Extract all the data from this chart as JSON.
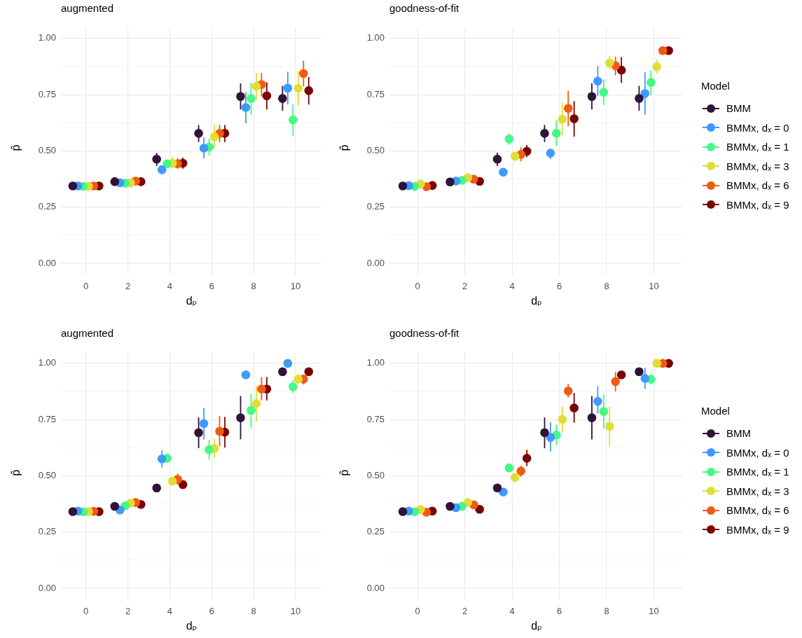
{
  "chart_data": [
    {
      "type": "scatter",
      "title": "augmented",
      "xlabel": "dₚ",
      "ylabel": "p̂",
      "xlim": [
        -1.19,
        11.19
      ],
      "xticks": [
        0,
        2,
        4,
        6,
        8,
        10
      ],
      "ylim": [
        -0.05,
        1.05
      ],
      "yticks": [
        {
          "value": 0,
          "label": "0.00"
        },
        {
          "value": 0.125,
          "label": null
        },
        {
          "value": 0.25,
          "label": "0.25"
        },
        {
          "value": 0.375,
          "label": null
        },
        {
          "value": 0.5,
          "label": "0.50"
        },
        {
          "value": 0.625,
          "label": null
        },
        {
          "value": 0.75,
          "label": "0.75"
        },
        {
          "value": 0.875,
          "label": null
        },
        {
          "value": 1,
          "label": "1.00"
        }
      ],
      "grid": true,
      "marker": "circle",
      "series": [
        {
          "color": "#30123b",
          "x": [
            -0.625,
            1.375,
            3.375,
            5.375,
            7.375,
            9.375
          ],
          "values": [
            0.344,
            0.363,
            0.463,
            0.578,
            0.742,
            0.733
          ],
          "errors": [
            null,
            null,
            [
              0.433,
              0.491
            ],
            [
              0.539,
              0.615
            ],
            [
              0.684,
              0.8
            ],
            [
              0.678,
              0.789
            ]
          ]
        },
        {
          "color": "#3e9bfe",
          "x": [
            -0.375,
            1.625,
            3.625,
            5.625,
            7.625,
            9.625
          ],
          "values": [
            0.344,
            0.358,
            0.416,
            0.512,
            0.693,
            0.779
          ],
          "errors": [
            null,
            null,
            null,
            [
              0.466,
              0.56
            ],
            [
              0.623,
              0.761
            ],
            [
              0.706,
              0.852
            ]
          ]
        },
        {
          "color": "#46f884",
          "x": [
            -0.125,
            1.875,
            3.875,
            5.875,
            7.875,
            9.875
          ],
          "values": [
            0.342,
            0.356,
            0.443,
            0.517,
            0.733,
            0.638
          ],
          "errors": [
            null,
            null,
            null,
            [
              0.479,
              0.555
            ],
            [
              0.661,
              0.804
            ],
            [
              0.565,
              0.708
            ]
          ]
        },
        {
          "color": "#e1dd37",
          "x": [
            0.125,
            2.125,
            4.125,
            6.125,
            8.125,
            10.125
          ],
          "values": [
            0.342,
            0.358,
            0.445,
            0.563,
            0.787,
            0.778
          ],
          "errors": [
            null,
            null,
            [
              0.421,
              0.474
            ],
            [
              0.511,
              0.618
            ],
            [
              0.727,
              0.846
            ],
            [
              0.7,
              0.855
            ]
          ]
        },
        {
          "color": "#f05b12",
          "x": [
            0.375,
            2.375,
            4.375,
            6.375,
            8.375,
            10.375
          ],
          "values": [
            0.344,
            0.366,
            0.443,
            0.578,
            0.795,
            0.844
          ],
          "errors": [
            null,
            null,
            [
              0.421,
              0.468
            ],
            [
              0.539,
              0.615
            ],
            [
              0.741,
              0.846
            ],
            [
              0.787,
              0.901
            ]
          ]
        },
        {
          "color": "#7a0403",
          "x": [
            0.625,
            2.625,
            4.625,
            6.625,
            8.625,
            10.625
          ],
          "values": [
            0.344,
            0.363,
            0.445,
            0.578,
            0.745,
            0.768
          ],
          "errors": [
            null,
            null,
            [
              0.421,
              0.47
            ],
            [
              0.539,
              0.615
            ],
            [
              0.684,
              0.805
            ],
            [
              0.706,
              0.828
            ]
          ]
        }
      ]
    },
    {
      "type": "scatter",
      "title": "goodness-of-fit",
      "xlabel": "dₚ",
      "ylabel": "p̂",
      "xlim": [
        -1.19,
        11.19
      ],
      "xticks": [
        0,
        2,
        4,
        6,
        8,
        10
      ],
      "ylim": [
        -0.05,
        1.05
      ],
      "yticks": [
        {
          "value": 0,
          "label": "0.00"
        },
        {
          "value": 0.125,
          "label": null
        },
        {
          "value": 0.25,
          "label": "0.25"
        },
        {
          "value": 0.375,
          "label": null
        },
        {
          "value": 0.5,
          "label": "0.50"
        },
        {
          "value": 0.625,
          "label": null
        },
        {
          "value": 0.75,
          "label": "0.75"
        },
        {
          "value": 0.875,
          "label": null
        },
        {
          "value": 1,
          "label": "1.00"
        }
      ],
      "grid": true,
      "marker": "circle",
      "legend": "right",
      "legend_title": "Model",
      "series": [
        {
          "name": "BMM",
          "color": "#30123b",
          "x": [
            -0.625,
            1.375,
            3.375,
            5.375,
            7.375,
            9.375
          ],
          "values": [
            0.344,
            0.362,
            0.463,
            0.578,
            0.742,
            0.733
          ],
          "errors": [
            null,
            null,
            [
              0.433,
              0.492
            ],
            [
              0.539,
              0.615
            ],
            [
              0.684,
              0.8
            ],
            [
              0.678,
              0.789
            ]
          ]
        },
        {
          "name": "BMMx, dₓ = 0",
          "color": "#3e9bfe",
          "x": [
            -0.375,
            1.625,
            3.625,
            5.625,
            7.625,
            9.625
          ],
          "values": [
            0.345,
            0.366,
            0.405,
            0.49,
            0.81,
            0.755
          ],
          "errors": [
            null,
            null,
            null,
            [
              0.464,
              0.506
            ],
            [
              0.744,
              0.877
            ],
            [
              0.66,
              0.85
            ]
          ]
        },
        {
          "name": "BMMx, dₓ = 1",
          "color": "#46f884",
          "x": [
            -0.125,
            1.875,
            3.875,
            5.875,
            7.875,
            9.875
          ],
          "values": [
            0.342,
            0.369,
            0.553,
            0.578,
            0.76,
            0.804
          ],
          "errors": [
            null,
            null,
            [
              0.527,
              0.577
            ],
            [
              0.522,
              0.635
            ],
            [
              0.704,
              0.818
            ],
            [
              0.747,
              0.858
            ]
          ]
        },
        {
          "name": "BMMx, dₓ = 3",
          "color": "#e1dd37",
          "x": [
            0.125,
            2.125,
            4.125,
            6.125,
            8.125,
            10.125
          ],
          "values": [
            0.352,
            0.381,
            0.476,
            0.641,
            0.891,
            0.874
          ],
          "errors": [
            null,
            null,
            [
              0.455,
              0.489
            ],
            [
              0.567,
              0.714
            ],
            [
              0.863,
              0.924
            ],
            [
              0.843,
              0.905
            ]
          ]
        },
        {
          "name": "BMMx, dₓ = 6",
          "color": "#f05b12",
          "x": [
            0.375,
            2.375,
            4.375,
            6.375,
            8.375,
            10.375
          ],
          "values": [
            0.341,
            0.374,
            0.484,
            0.689,
            0.879,
            0.946
          ],
          "errors": [
            null,
            null,
            [
              0.453,
              0.516
            ],
            [
              0.609,
              0.767
            ],
            [
              0.836,
              0.919
            ],
            null
          ]
        },
        {
          "name": "BMMx, dₓ = 9",
          "color": "#7a0403",
          "x": [
            0.625,
            2.625,
            4.625,
            6.625,
            8.625,
            10.625
          ],
          "values": [
            0.346,
            0.364,
            0.498,
            0.643,
            0.859,
            0.946
          ],
          "errors": [
            null,
            null,
            [
              0.472,
              0.526
            ],
            [
              0.563,
              0.721
            ],
            [
              0.802,
              0.917
            ],
            null
          ]
        }
      ]
    },
    {
      "type": "scatter",
      "title": "augmented",
      "xlabel": "dₚ",
      "ylabel": "p̂",
      "xlim": [
        -1.19,
        11.19
      ],
      "xticks": [
        0,
        2,
        4,
        6,
        8,
        10
      ],
      "ylim": [
        -0.05,
        1.05
      ],
      "yticks": [
        {
          "value": 0,
          "label": "0.00"
        },
        {
          "value": 0.125,
          "label": null
        },
        {
          "value": 0.25,
          "label": "0.25"
        },
        {
          "value": 0.375,
          "label": null
        },
        {
          "value": 0.5,
          "label": "0.50"
        },
        {
          "value": 0.625,
          "label": null
        },
        {
          "value": 0.75,
          "label": "0.75"
        },
        {
          "value": 0.875,
          "label": null
        },
        {
          "value": 1,
          "label": "1.00"
        }
      ],
      "grid": true,
      "marker": "circle",
      "series": [
        {
          "color": "#30123b",
          "x": [
            -0.625,
            1.375,
            3.375,
            5.375,
            7.375,
            9.375
          ],
          "values": [
            0.341,
            0.364,
            0.446,
            0.692,
            0.758,
            0.963
          ],
          "errors": [
            null,
            null,
            null,
            [
              0.623,
              0.76
            ],
            [
              0.662,
              0.855
            ],
            null
          ]
        },
        {
          "color": "#3e9bfe",
          "x": [
            -0.375,
            1.625,
            3.625,
            5.625,
            7.625,
            9.625
          ],
          "values": [
            0.343,
            0.348,
            0.575,
            0.732,
            0.949,
            1.0
          ],
          "errors": [
            null,
            null,
            [
              0.537,
              0.613
            ],
            [
              0.662,
              0.801
            ],
            null,
            null
          ]
        },
        {
          "color": "#46f884",
          "x": [
            -0.125,
            1.875,
            3.875,
            5.875,
            7.875,
            9.875
          ],
          "values": [
            0.34,
            0.367,
            0.578,
            0.616,
            0.791,
            0.896
          ],
          "errors": [
            null,
            null,
            [
              0.559,
              0.6
            ],
            [
              0.572,
              0.66
            ],
            [
              0.714,
              0.864
            ],
            [
              0.868,
              0.925
            ]
          ]
        },
        {
          "color": "#e1dd37",
          "x": [
            0.125,
            2.125,
            4.125,
            6.125,
            8.125,
            10.125
          ],
          "values": [
            0.341,
            0.379,
            0.476,
            0.622,
            0.821,
            0.93
          ],
          "errors": [
            null,
            null,
            null,
            [
              0.578,
              0.665
            ],
            [
              0.741,
              0.9
            ],
            [
              0.908,
              0.953
            ]
          ]
        },
        {
          "color": "#f05b12",
          "x": [
            0.375,
            2.375,
            4.375,
            6.375,
            8.375,
            10.375
          ],
          "values": [
            0.342,
            0.381,
            0.484,
            0.698,
            0.886,
            0.93
          ],
          "errors": [
            null,
            null,
            [
              0.461,
              0.51
            ],
            [
              0.632,
              0.766
            ],
            [
              0.835,
              0.939
            ],
            [
              0.906,
              0.951
            ]
          ]
        },
        {
          "color": "#7a0403",
          "x": [
            0.625,
            2.625,
            4.625,
            6.625,
            8.625,
            10.625
          ],
          "values": [
            0.341,
            0.373,
            0.461,
            0.694,
            0.886,
            0.963
          ],
          "errors": [
            null,
            null,
            null,
            [
              0.626,
              0.762
            ],
            [
              0.835,
              0.939
            ],
            null
          ]
        }
      ]
    },
    {
      "type": "scatter",
      "title": "goodness-of-fit",
      "xlabel": "dₚ",
      "ylabel": "p̂",
      "xlim": [
        -1.19,
        11.19
      ],
      "xticks": [
        0,
        2,
        4,
        6,
        8,
        10
      ],
      "ylim": [
        -0.05,
        1.05
      ],
      "yticks": [
        {
          "value": 0,
          "label": "0.00"
        },
        {
          "value": 0.125,
          "label": null
        },
        {
          "value": 0.25,
          "label": "0.25"
        },
        {
          "value": 0.375,
          "label": null
        },
        {
          "value": 0.5,
          "label": "0.50"
        },
        {
          "value": 0.625,
          "label": null
        },
        {
          "value": 0.75,
          "label": "0.75"
        },
        {
          "value": 0.875,
          "label": null
        },
        {
          "value": 1,
          "label": "1.00"
        }
      ],
      "grid": true,
      "marker": "circle",
      "legend": "right",
      "legend_title": "Model",
      "series": [
        {
          "name": "BMM",
          "color": "#30123b",
          "x": [
            -0.625,
            1.375,
            3.375,
            5.375,
            7.375,
            9.375
          ],
          "values": [
            0.341,
            0.364,
            0.446,
            0.692,
            0.758,
            0.963
          ],
          "errors": [
            null,
            null,
            null,
            [
              0.623,
              0.76
            ],
            [
              0.662,
              0.855
            ],
            null
          ]
        },
        {
          "name": "BMMx, dₓ = 0",
          "color": "#3e9bfe",
          "x": [
            -0.375,
            1.625,
            3.625,
            5.625,
            7.625,
            9.625
          ],
          "values": [
            0.343,
            0.358,
            0.428,
            0.671,
            0.831,
            0.933
          ],
          "errors": [
            null,
            null,
            null,
            [
              0.608,
              0.738
            ],
            [
              0.777,
              0.899
            ],
            [
              0.887,
              0.98
            ]
          ]
        },
        {
          "name": "BMMx, dₓ = 1",
          "color": "#46f884",
          "x": [
            -0.125,
            1.875,
            3.875,
            5.875,
            7.875,
            9.875
          ],
          "values": [
            0.34,
            0.364,
            0.535,
            0.681,
            0.786,
            0.929
          ],
          "errors": [
            null,
            null,
            null,
            [
              0.636,
              0.728
            ],
            [
              0.709,
              0.862
            ],
            [
              0.906,
              0.951
            ]
          ]
        },
        {
          "name": "BMMx, dₓ = 3",
          "color": "#e1dd37",
          "x": [
            0.125,
            2.125,
            4.125,
            6.125,
            8.125,
            10.125
          ],
          "values": [
            0.35,
            0.381,
            0.493,
            0.751,
            0.72,
            1.0
          ],
          "errors": [
            null,
            null,
            [
              0.468,
              0.514
            ],
            [
              0.692,
              0.809
            ],
            [
              0.631,
              0.809
            ],
            null
          ]
        },
        {
          "name": "BMMx, dₓ = 6",
          "color": "#f05b12",
          "x": [
            0.375,
            2.375,
            4.375,
            6.375,
            8.375,
            10.375
          ],
          "values": [
            0.338,
            0.371,
            0.521,
            0.877,
            0.919,
            1.0
          ],
          "errors": [
            null,
            null,
            [
              0.496,
              0.545
            ],
            [
              0.848,
              0.909
            ],
            [
              0.875,
              0.962
            ],
            null
          ]
        },
        {
          "name": "BMMx, dₓ = 9",
          "color": "#7a0403",
          "x": [
            0.625,
            2.625,
            4.625,
            6.625,
            8.625,
            10.625
          ],
          "values": [
            0.343,
            0.351,
            0.578,
            0.802,
            0.949,
            1.0
          ],
          "errors": [
            null,
            null,
            [
              0.543,
              0.616
            ],
            [
              0.736,
              0.868
            ],
            null,
            null
          ]
        }
      ]
    }
  ]
}
